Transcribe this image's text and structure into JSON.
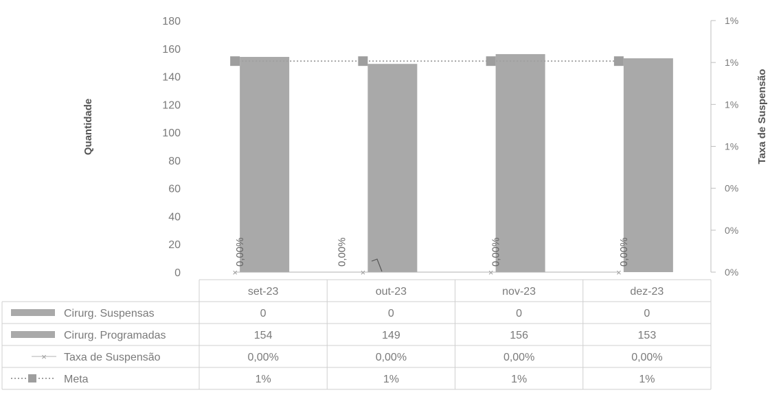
{
  "chart_data": {
    "type": "bar",
    "categories": [
      "set-23",
      "out-23",
      "nov-23",
      "dez-23"
    ],
    "y_left": {
      "label": "Quantidade",
      "ticks": [
        "0",
        "20",
        "40",
        "60",
        "80",
        "100",
        "120",
        "140",
        "160",
        "180"
      ],
      "ylim": [
        0,
        180
      ]
    },
    "y_right": {
      "label": "Taxa de Suspensão",
      "ticks": [
        "0%",
        "0%",
        "0%",
        "1%",
        "1%",
        "1%",
        "1%"
      ]
    },
    "series": [
      {
        "name": "Cirurg. Suspensas",
        "kind": "bar",
        "axis": "left",
        "values": [
          0,
          0,
          0,
          0
        ],
        "table_values": [
          "0",
          "0",
          "0",
          "0"
        ],
        "color": "#a9a9a9"
      },
      {
        "name": "Cirurg. Programadas",
        "kind": "bar",
        "axis": "left",
        "values": [
          154,
          149,
          156,
          153
        ],
        "table_values": [
          "154",
          "149",
          "156",
          "153"
        ],
        "color": "#a9a9a9"
      },
      {
        "name": "Taxa de Suspensão",
        "kind": "line",
        "axis": "right",
        "values": [
          0,
          0,
          0,
          0
        ],
        "table_values": [
          "0,00%",
          "0,00%",
          "0,00%",
          "0,00%"
        ],
        "data_labels": [
          "0,00%",
          "0,00%",
          "0,00%",
          "0,00%"
        ],
        "color": "#9a9a9a"
      },
      {
        "name": "Meta",
        "kind": "line",
        "axis": "right",
        "values": [
          0.01,
          0.01,
          0.01,
          0.01
        ],
        "table_values": [
          "1%",
          "1%",
          "1%",
          "1%"
        ],
        "color": "#9a9a9a"
      }
    ],
    "legend": "data-table",
    "grid": false
  }
}
